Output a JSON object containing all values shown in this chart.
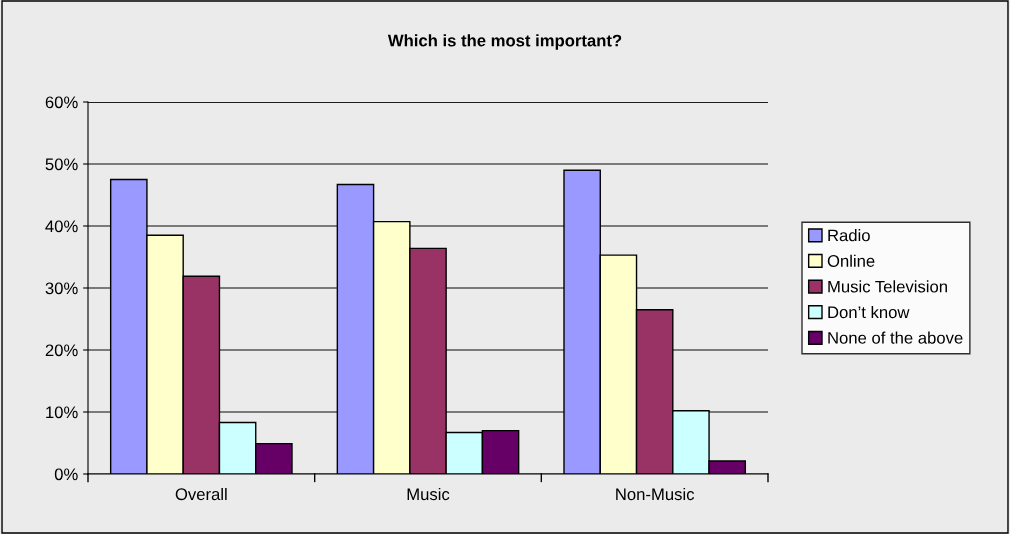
{
  "chart_data": {
    "type": "bar",
    "title": "Which is the most important?",
    "categories": [
      "Overall",
      "Music",
      "Non-Music"
    ],
    "series": [
      {
        "name": "Radio",
        "color": "#9999ff",
        "values": [
          47.5,
          46.7,
          49.0
        ]
      },
      {
        "name": "Online",
        "color": "#ffffcc",
        "values": [
          38.5,
          40.7,
          35.3
        ]
      },
      {
        "name": "Music Television",
        "color": "#993366",
        "values": [
          31.9,
          36.4,
          26.5
        ]
      },
      {
        "name": "Don’t know",
        "color": "#ccffff",
        "values": [
          8.3,
          6.7,
          10.2
        ]
      },
      {
        "name": "None of the above",
        "color": "#660066",
        "values": [
          4.9,
          7.0,
          2.1
        ]
      }
    ],
    "ylim": [
      0,
      60
    ],
    "yticks": [
      {
        "value": 0,
        "label": "0%"
      },
      {
        "value": 10,
        "label": "10%"
      },
      {
        "value": 20,
        "label": "20%"
      },
      {
        "value": 30,
        "label": "30%"
      },
      {
        "value": 40,
        "label": "40%"
      },
      {
        "value": 50,
        "label": "50%"
      },
      {
        "value": 60,
        "label": "60%"
      }
    ],
    "grid": "y",
    "legend": "right"
  }
}
